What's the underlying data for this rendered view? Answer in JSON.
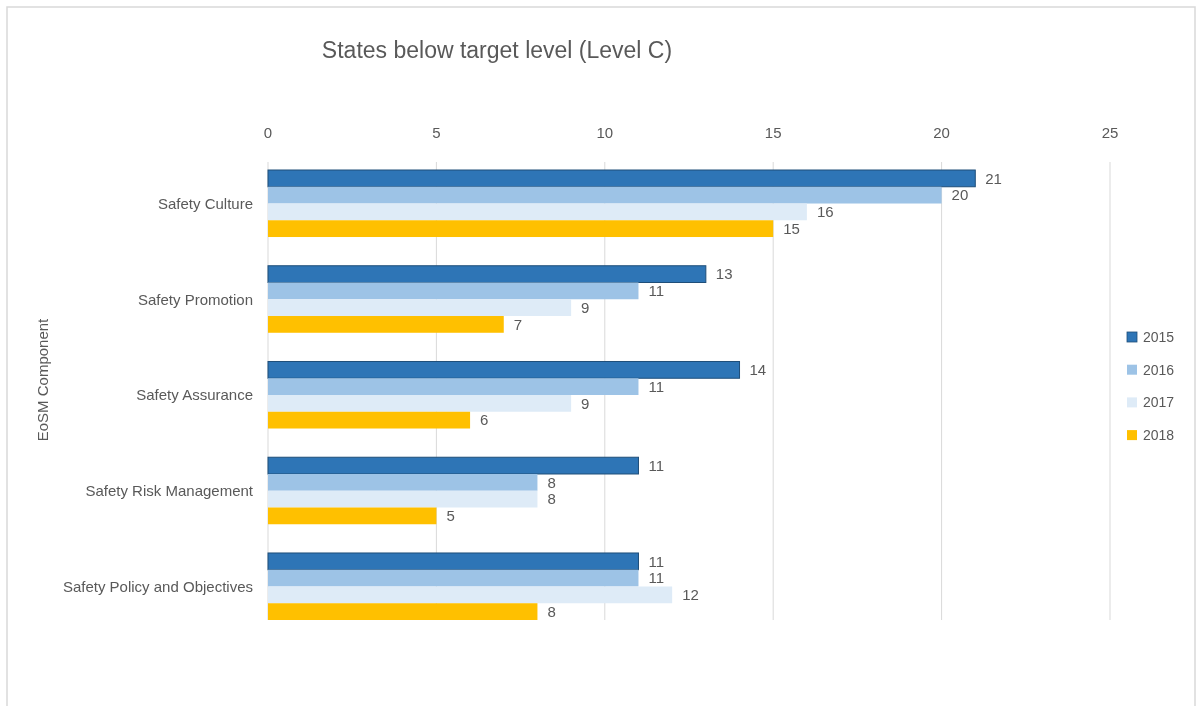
{
  "chart_data": {
    "type": "bar",
    "orientation": "horizontal",
    "title": "States below target level (Level C)",
    "ylabel": "EoSM Component",
    "categories": [
      "Safety Culture",
      "Safety Promotion",
      "Safety Assurance",
      "Safety Risk Management",
      "Safety Policy and Objectives"
    ],
    "series": [
      {
        "name": "2015",
        "color": "#2e75b6",
        "values": [
          21,
          13,
          14,
          11,
          11
        ]
      },
      {
        "name": "2016",
        "color": "#9dc3e6",
        "values": [
          20,
          11,
          11,
          8,
          11
        ]
      },
      {
        "name": "2017",
        "color": "#deebf7",
        "values": [
          16,
          9,
          9,
          8,
          12
        ]
      },
      {
        "name": "2018",
        "color": "#ffc000",
        "values": [
          15,
          7,
          6,
          5,
          8
        ]
      }
    ],
    "xlim": [
      0,
      25
    ],
    "xticks": [
      0,
      5,
      10,
      15,
      20,
      25
    ],
    "grid": "x",
    "legend": "right",
    "data_labels": true
  }
}
